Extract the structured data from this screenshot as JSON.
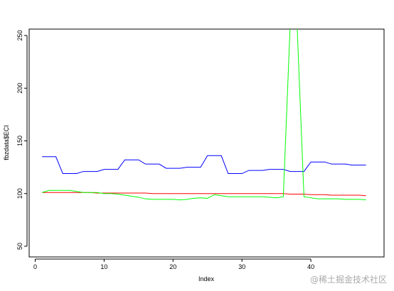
{
  "chart_data": {
    "type": "line",
    "xlabel": "Index",
    "ylabel": "fbzdata$ECI",
    "xlim": [
      1,
      48
    ],
    "ylim": [
      50,
      250
    ],
    "x_ticks": [
      0,
      10,
      20,
      30,
      40
    ],
    "y_ticks": [
      50,
      100,
      150,
      200,
      250
    ],
    "x": [
      1,
      2,
      3,
      4,
      5,
      6,
      7,
      8,
      9,
      10,
      11,
      12,
      13,
      14,
      15,
      16,
      17,
      18,
      19,
      20,
      21,
      22,
      23,
      24,
      25,
      26,
      27,
      28,
      29,
      30,
      31,
      32,
      33,
      34,
      35,
      36,
      37,
      38,
      39,
      40,
      41,
      42,
      43,
      44,
      45,
      46,
      47,
      48
    ],
    "series": [
      {
        "color": "#0000ff",
        "values": [
          135,
          135,
          135,
          119,
          119,
          119,
          121,
          121,
          121,
          123,
          123,
          123,
          132,
          132,
          132,
          128,
          128,
          128,
          124,
          124,
          124,
          125,
          125,
          125,
          136,
          136,
          136,
          119,
          119,
          119,
          122,
          122,
          122,
          123,
          123,
          123,
          121,
          121,
          121,
          130,
          130,
          130,
          128,
          128,
          128,
          127,
          127,
          127
        ]
      },
      {
        "color": "#ff0000",
        "values": [
          101,
          101,
          101,
          101,
          101,
          101,
          101,
          101,
          100.5,
          100.5,
          100.5,
          100.5,
          100.5,
          100.5,
          100.5,
          100.5,
          100,
          100,
          100,
          100,
          100,
          100,
          100,
          100,
          100,
          100,
          100,
          100,
          100,
          100,
          100,
          100,
          100,
          100,
          100,
          100,
          99.5,
          99.5,
          99.5,
          99,
          99,
          99,
          98.5,
          98.5,
          98.5,
          98.5,
          98.5,
          98
        ]
      },
      {
        "color": "#00ff00",
        "values": [
          101,
          103,
          103,
          103,
          103,
          102,
          101,
          101,
          101,
          100,
          100,
          99.5,
          98.5,
          97.5,
          96.5,
          95,
          94.5,
          94.5,
          94.5,
          94.5,
          94,
          94.5,
          95.5,
          96,
          95.5,
          99,
          98,
          97,
          97,
          97,
          97,
          97,
          97,
          96.5,
          96,
          97,
          260,
          260,
          97,
          96,
          95,
          95,
          95,
          95,
          94.5,
          94.5,
          94.5,
          94
        ]
      }
    ]
  },
  "watermark": "@稀土掘金技术社区"
}
